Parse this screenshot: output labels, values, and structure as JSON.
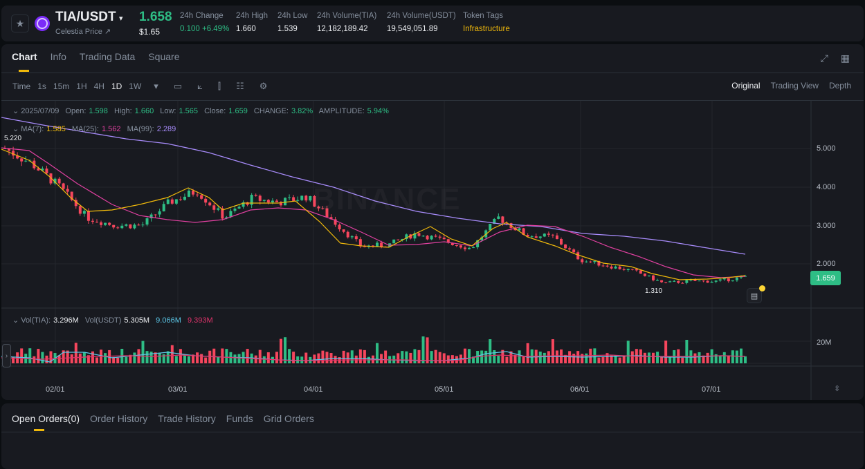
{
  "header": {
    "symbol": "TIA/USDT",
    "symbol_caret": "▾",
    "subtitle": "Celestia Price ↗",
    "last_price": "1.658",
    "last_price_usd": "$1.65",
    "stats": [
      {
        "label": "24h Change",
        "value": "0.100 +6.49%",
        "color": "green"
      },
      {
        "label": "24h High",
        "value": "1.660",
        "color": ""
      },
      {
        "label": "24h Low",
        "value": "1.539",
        "color": ""
      },
      {
        "label": "24h Volume(TIA)",
        "value": "12,182,189.42",
        "color": ""
      },
      {
        "label": "24h Volume(USDT)",
        "value": "19,549,051.89",
        "color": ""
      },
      {
        "label": "Token Tags",
        "value": "Infrastructure",
        "color": "yellow"
      }
    ],
    "favorite_icon": "★"
  },
  "chart_tabs": [
    {
      "label": "Chart",
      "active": true
    },
    {
      "label": "Info",
      "active": false
    },
    {
      "label": "Trading Data",
      "active": false
    },
    {
      "label": "Square",
      "active": false
    }
  ],
  "top_icons": {
    "expand": "⤢",
    "layout": "▦"
  },
  "toolbar": {
    "intervals": [
      "Time",
      "1s",
      "15m",
      "1H",
      "4H",
      "1D",
      "1W"
    ],
    "active_interval": "1D",
    "more": "▾",
    "icons": {
      "calendar": "▭",
      "indicators": "⟀",
      "candle_type": "⫿",
      "chart_settings": "☷",
      "settings": "⚙"
    }
  },
  "views": [
    {
      "label": "Original",
      "active": true
    },
    {
      "label": "Trading View",
      "active": false
    },
    {
      "label": "Depth",
      "active": false
    }
  ],
  "ohlc": {
    "date": "2025/07/09",
    "open_label": "Open:",
    "open": "1.598",
    "high_label": "High:",
    "high": "1.660",
    "low_label": "Low:",
    "low": "1.565",
    "close_label": "Close:",
    "close": "1.659",
    "change_label": "CHANGE:",
    "change": "3.82%",
    "amplitude_label": "AMPLITUDE:",
    "amplitude": "5.94%"
  },
  "ma": {
    "ma7_label": "MA(7):",
    "ma7": "1.585",
    "ma7_color": "#f0b90b",
    "ma25_label": "MA(25):",
    "ma25": "1.562",
    "ma25_color": "#e040a0",
    "ma99_label": "MA(99):",
    "ma99": "2.289",
    "ma99_color": "#a78bfa"
  },
  "price_axis": [
    "5.000",
    "4.000",
    "3.000",
    "2.000"
  ],
  "current_price_tag": "1.659",
  "max_marker": "5.220",
  "min_marker": "1.310",
  "watermark": "BINANCE",
  "volume": {
    "tia_label": "Vol(TIA):",
    "tia": "3.296M",
    "usdt_label": "Vol(USDT)",
    "usdt": "5.305M",
    "ma1": "9.066M",
    "ma2": "9.393M",
    "axis": "20M"
  },
  "x_axis": [
    "02/01",
    "03/01",
    "04/01",
    "05/01",
    "06/01",
    "07/01"
  ],
  "orders_tabs": [
    {
      "label": "Open Orders(0)",
      "active": true
    },
    {
      "label": "Order History",
      "active": false
    },
    {
      "label": "Trade History",
      "active": false
    },
    {
      "label": "Funds",
      "active": false
    },
    {
      "label": "Grid Orders",
      "active": false
    }
  ],
  "chart_data": {
    "type": "candlestick",
    "title": "TIA/USDT 1D",
    "x_ticks": [
      "02/01",
      "03/01",
      "04/01",
      "05/01",
      "06/01",
      "07/01"
    ],
    "y_ticks": [
      2.0,
      3.0,
      4.0,
      5.0
    ],
    "ylim": [
      1.2,
      5.6
    ],
    "approx_close_path": [
      {
        "x": "01/14",
        "close": 5.0
      },
      {
        "x": "01/20",
        "close": 4.6
      },
      {
        "x": "01/27",
        "close": 4.0
      },
      {
        "x": "02/03",
        "close": 3.2
      },
      {
        "x": "02/10",
        "close": 3.0
      },
      {
        "x": "02/17",
        "close": 3.0
      },
      {
        "x": "02/24",
        "close": 3.6
      },
      {
        "x": "03/01",
        "close": 3.9
      },
      {
        "x": "03/07",
        "close": 3.2
      },
      {
        "x": "03/14",
        "close": 3.7
      },
      {
        "x": "03/21",
        "close": 3.6
      },
      {
        "x": "03/28",
        "close": 3.75
      },
      {
        "x": "04/04",
        "close": 3.1
      },
      {
        "x": "04/10",
        "close": 2.45
      },
      {
        "x": "04/17",
        "close": 2.5
      },
      {
        "x": "04/24",
        "close": 2.8
      },
      {
        "x": "05/01",
        "close": 2.6
      },
      {
        "x": "05/07",
        "close": 2.4
      },
      {
        "x": "05/12",
        "close": 3.2
      },
      {
        "x": "05/17",
        "close": 2.75
      },
      {
        "x": "05/24",
        "close": 2.7
      },
      {
        "x": "05/31",
        "close": 2.1
      },
      {
        "x": "06/07",
        "close": 1.95
      },
      {
        "x": "06/14",
        "close": 1.8
      },
      {
        "x": "06/21",
        "close": 1.5
      },
      {
        "x": "06/28",
        "close": 1.55
      },
      {
        "x": "07/04",
        "close": 1.55
      },
      {
        "x": "07/09",
        "close": 1.659
      }
    ],
    "series": [
      {
        "name": "MA(7)",
        "last": 1.585
      },
      {
        "name": "MA(25)",
        "last": 1.562
      },
      {
        "name": "MA(99)",
        "last": 2.289
      }
    ],
    "annotations": {
      "max": 5.22,
      "min": 1.31,
      "current": 1.659
    },
    "volume_axis": [
      "20M"
    ]
  }
}
